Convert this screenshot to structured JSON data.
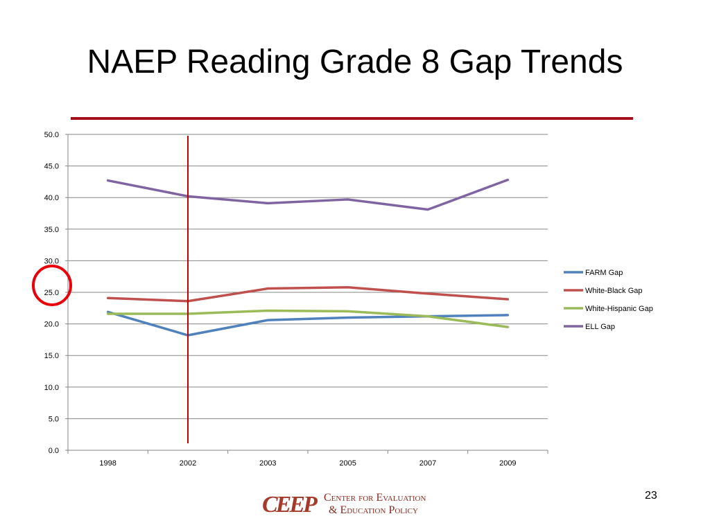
{
  "slide": {
    "title": "NAEP Reading Grade 8 Gap Trends",
    "page_number": "23",
    "logo_mark": "CEEP",
    "logo_line1": "Center for Evaluation",
    "logo_line2": "& Education Policy"
  },
  "colors": {
    "title_rule": "#a50f1a",
    "marker_line": "#c00000",
    "circle": "#e8000b",
    "logo": "#a33a2a"
  },
  "chart_data": {
    "type": "line",
    "categories": [
      "1998",
      "2002",
      "2003",
      "2005",
      "2007",
      "2009"
    ],
    "ylim": [
      0,
      50
    ],
    "yticks": [
      "0.0",
      "5.0",
      "10.0",
      "15.0",
      "20.0",
      "25.0",
      "30.0",
      "35.0",
      "40.0",
      "45.0",
      "50.0"
    ],
    "grid": true,
    "legend_position": "right",
    "title": "",
    "xlabel": "",
    "ylabel": "",
    "series": [
      {
        "name": "FARM Gap",
        "color": "#4f81bd",
        "values": [
          21.9,
          18.2,
          20.6,
          21.0,
          21.2,
          21.4
        ]
      },
      {
        "name": "White-Black Gap",
        "color": "#c0504d",
        "values": [
          24.1,
          23.6,
          25.6,
          25.8,
          24.8,
          23.9
        ]
      },
      {
        "name": "White-Hispanic Gap",
        "color": "#9bbb59",
        "values": [
          21.6,
          21.6,
          22.1,
          22.0,
          21.2,
          19.5
        ]
      },
      {
        "name": "ELL Gap",
        "color": "#8064a2",
        "values": [
          42.7,
          40.2,
          39.1,
          39.7,
          38.1,
          42.8
        ]
      }
    ],
    "annotations": {
      "vertical_marker_category": "2002",
      "circled_tick": "25.0"
    }
  }
}
